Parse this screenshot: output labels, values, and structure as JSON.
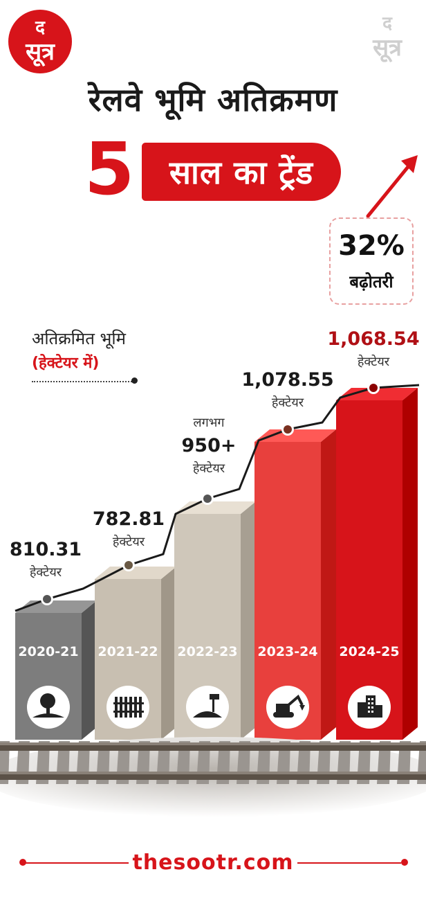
{
  "logo": {
    "line1": "द",
    "line2": "सूत्र"
  },
  "header": {
    "title_line1": "रेलवे भूमि अतिक्रमण",
    "title_number": "5",
    "title_pill": "साल का ट्रेंड"
  },
  "growth": {
    "percent": "32%",
    "label": "बढ़ोतरी"
  },
  "legend": {
    "title": "अतिक्रमित भूमि",
    "unit": "(हेक्टेयर में)"
  },
  "chart_data": {
    "type": "bar",
    "title": "",
    "xlabel": "",
    "ylabel": "अतिक्रमित भूमि (हेक्टेयर में)",
    "categories": [
      "2020-21",
      "2021-22",
      "2022-23",
      "2023-24",
      "2024-25"
    ],
    "values": [
      810.31,
      782.81,
      950,
      1078.55,
      1068.54
    ],
    "value_labels": [
      "810.31",
      "782.81",
      "950+",
      "1,078.55",
      "1,068.54"
    ],
    "value_prefix": [
      "",
      "",
      "लगभग",
      "",
      ""
    ],
    "unit_label": "हेक्टेयर",
    "icons": [
      "tree-icon",
      "fence-icon",
      "land-signpost-icon",
      "excavator-icon",
      "buildings-icon"
    ],
    "bar_colors": [
      "#7d7d7d",
      "#c8bfb1",
      "#cfc7ba",
      "#e8403d",
      "#d7141a"
    ],
    "ylim": [
      0,
      1200
    ]
  },
  "footer": {
    "website": "thesootr.com"
  },
  "colors": {
    "accent": "#d7141a",
    "text": "#1a1a1a"
  }
}
